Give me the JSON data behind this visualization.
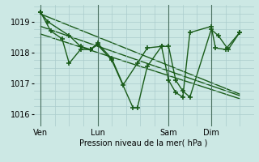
{
  "background_color": "#cce8e4",
  "grid_color": "#aacccc",
  "line_color": "#1a5c1a",
  "xlabel": "Pression niveau de la mer( hPa )",
  "ylim": [
    1015.6,
    1019.55
  ],
  "yticks": [
    1016,
    1017,
    1018,
    1019
  ],
  "xtick_labels": [
    "Ven",
    "Lun",
    "Sam",
    "Dim"
  ],
  "xtick_positions": [
    0,
    4,
    9,
    12
  ],
  "xlim": [
    -0.5,
    14.5
  ],
  "vline_positions": [
    0,
    4,
    9,
    12
  ],
  "series1_x": [
    0,
    0.5,
    2,
    2.8,
    3.5,
    4.0,
    5.0,
    6.5,
    6.8,
    7.5,
    8.5,
    9.0,
    9.5,
    10.0,
    10.5,
    12.0,
    12.5,
    13.2,
    14.0
  ],
  "series1_y": [
    1019.3,
    1019.0,
    1018.55,
    1018.2,
    1018.1,
    1018.25,
    1017.75,
    1016.2,
    1016.2,
    1017.55,
    1018.2,
    1018.2,
    1017.1,
    1016.75,
    1016.55,
    1018.75,
    1018.55,
    1018.1,
    1018.65
  ],
  "series2_x": [
    0,
    0.7,
    1.5,
    2.0,
    2.8,
    3.5,
    4.0,
    5.0,
    5.8,
    6.8,
    7.5,
    8.5,
    9.0,
    9.5,
    10.0,
    10.5,
    12.0,
    12.3,
    13.0,
    14.0
  ],
  "series2_y": [
    1019.3,
    1018.7,
    1018.45,
    1017.65,
    1018.1,
    1018.1,
    1018.3,
    1017.8,
    1016.95,
    1017.65,
    1018.15,
    1018.2,
    1017.1,
    1016.7,
    1016.55,
    1018.65,
    1018.85,
    1018.15,
    1018.1,
    1018.65
  ],
  "trend1_x": [
    0,
    14.0
  ],
  "trend1_y": [
    1019.25,
    1016.65
  ],
  "trend2_x": [
    0,
    14.0
  ],
  "trend2_y": [
    1018.85,
    1016.6
  ],
  "trend3_x": [
    0,
    14.0
  ],
  "trend3_y": [
    1018.6,
    1016.5
  ],
  "marker": "+",
  "markersize": 4,
  "markeredgewidth": 1.2,
  "linewidth": 1.0
}
